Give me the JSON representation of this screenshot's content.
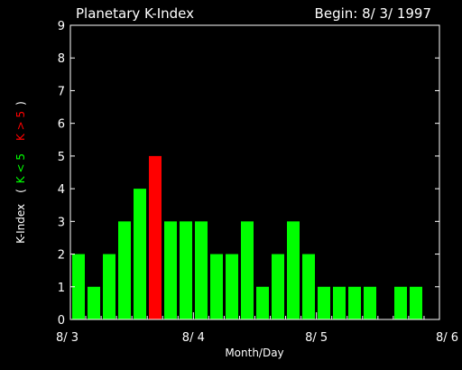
{
  "chart_data": {
    "type": "bar",
    "title": "Planetary K-Index",
    "subtitle": "Begin: 8/ 3/ 1997",
    "xlabel": "Month/Day",
    "ylabel": "K-Index",
    "legend": {
      "open": "(",
      "low": "K < 5",
      "high": "K > 5",
      "close": ")"
    },
    "ylim": [
      0,
      9
    ],
    "yticks": [
      "0",
      "1",
      "2",
      "3",
      "4",
      "5",
      "6",
      "7",
      "8",
      "9"
    ],
    "xlim": [
      0,
      24
    ],
    "xticks": [
      {
        "label": "8/ 3",
        "at": 0
      },
      {
        "label": "8/ 4",
        "at": 8
      },
      {
        "label": "8/ 5",
        "at": 16
      },
      {
        "label": "8/ 6",
        "at": 24
      }
    ],
    "values": [
      2,
      1,
      2,
      3,
      4,
      5,
      3,
      3,
      3,
      2,
      2,
      3,
      1,
      2,
      3,
      2,
      1,
      1,
      1,
      1,
      0,
      1,
      1,
      0
    ],
    "colors": {
      "low": "#00ff00",
      "high": "#ff0000",
      "axis": "#ffffff",
      "background": "#000000"
    }
  }
}
